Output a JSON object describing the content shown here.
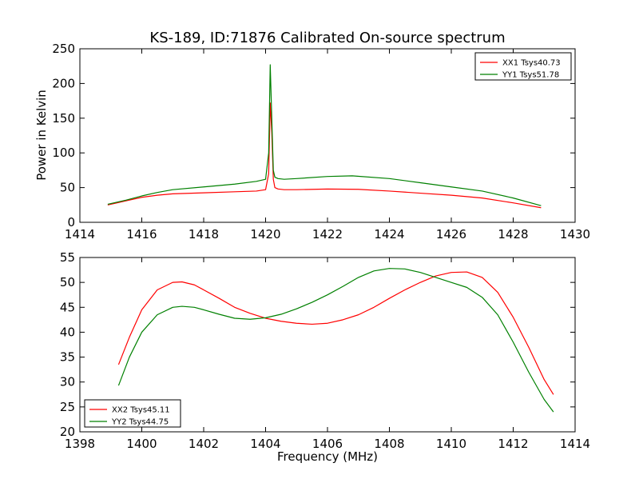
{
  "chart_data": [
    {
      "type": "line",
      "title": "KS-189, ID:71876 Calibrated On-source spectrum",
      "xlabel": "",
      "ylabel": "Power in Kelvin",
      "xlim": [
        1414,
        1430
      ],
      "ylim": [
        0,
        250
      ],
      "xticks": [
        "1414",
        "1416",
        "1418",
        "1420",
        "1422",
        "1424",
        "1426",
        "1428",
        "1430"
      ],
      "yticks": [
        "0",
        "50",
        "100",
        "150",
        "200",
        "250"
      ],
      "grid": false,
      "legend_position": "top-right",
      "series": [
        {
          "name": "XX1 Tsys40.73",
          "color": "#ff0000",
          "x": [
            1414.9,
            1415.5,
            1416.0,
            1416.5,
            1417.0,
            1418.0,
            1419.0,
            1419.7,
            1420.0,
            1420.1,
            1420.15,
            1420.2,
            1420.25,
            1420.3,
            1420.4,
            1420.6,
            1421.0,
            1422.0,
            1423.0,
            1424.0,
            1425.0,
            1426.0,
            1427.0,
            1428.0,
            1428.9
          ],
          "y": [
            25,
            31,
            36,
            39,
            41,
            42.5,
            44,
            45,
            47,
            70,
            172,
            130,
            62,
            50,
            48,
            47,
            47,
            48,
            47.5,
            45,
            42,
            39,
            35,
            28,
            21
          ]
        },
        {
          "name": "YY1 Tsys51.78",
          "color": "#008000",
          "x": [
            1414.9,
            1415.5,
            1416.0,
            1416.5,
            1417.0,
            1418.0,
            1419.0,
            1419.7,
            1420.0,
            1420.1,
            1420.15,
            1420.2,
            1420.25,
            1420.3,
            1420.4,
            1420.6,
            1421.0,
            1422.0,
            1422.8,
            1424.0,
            1425.0,
            1426.0,
            1427.0,
            1428.0,
            1428.9
          ],
          "y": [
            26,
            32,
            38,
            43,
            47,
            51,
            55,
            59,
            62,
            100,
            227,
            150,
            75,
            65,
            63,
            62,
            63,
            66,
            67,
            63,
            57,
            51,
            45,
            35,
            24
          ]
        }
      ]
    },
    {
      "type": "line",
      "title": "",
      "xlabel": "Frequency (MHz)",
      "ylabel": "",
      "xlim": [
        1398,
        1414
      ],
      "ylim": [
        20,
        55
      ],
      "xticks": [
        "1398",
        "1400",
        "1402",
        "1404",
        "1406",
        "1408",
        "1410",
        "1412",
        "1414"
      ],
      "yticks": [
        "20",
        "25",
        "30",
        "35",
        "40",
        "45",
        "50",
        "55"
      ],
      "grid": false,
      "legend_position": "bottom-left",
      "series": [
        {
          "name": "XX2 Tsys45.11",
          "color": "#ff0000",
          "x": [
            1399.25,
            1399.6,
            1400.0,
            1400.5,
            1401.0,
            1401.3,
            1401.7,
            1402.0,
            1402.5,
            1403.0,
            1403.5,
            1404.0,
            1404.5,
            1405.0,
            1405.5,
            1406.0,
            1406.5,
            1407.0,
            1407.5,
            1408.0,
            1408.5,
            1409.0,
            1409.5,
            1410.0,
            1410.5,
            1411.0,
            1411.5,
            1412.0,
            1412.5,
            1413.0,
            1413.3
          ],
          "y": [
            33.5,
            39,
            44.5,
            48.5,
            50,
            50.1,
            49.5,
            48.5,
            46.8,
            45,
            43.8,
            42.8,
            42.2,
            41.8,
            41.6,
            41.8,
            42.5,
            43.5,
            45,
            46.8,
            48.5,
            50,
            51.3,
            52,
            52.1,
            51,
            48,
            43,
            37,
            30.5,
            27.5
          ]
        },
        {
          "name": "YY2 Tsys44.75",
          "color": "#008000",
          "x": [
            1399.25,
            1399.6,
            1400.0,
            1400.5,
            1401.0,
            1401.3,
            1401.7,
            1402.0,
            1402.5,
            1403.0,
            1403.5,
            1404.0,
            1404.5,
            1405.0,
            1405.5,
            1406.0,
            1406.5,
            1407.0,
            1407.5,
            1408.0,
            1408.5,
            1409.0,
            1409.5,
            1410.0,
            1410.5,
            1411.0,
            1411.5,
            1412.0,
            1412.5,
            1413.0,
            1413.3
          ],
          "y": [
            29.3,
            35,
            40,
            43.5,
            45,
            45.2,
            45,
            44.5,
            43.6,
            42.8,
            42.6,
            42.9,
            43.6,
            44.7,
            46,
            47.5,
            49.2,
            51,
            52.3,
            52.8,
            52.7,
            52,
            51,
            50,
            49,
            47,
            43.5,
            38,
            32,
            26.5,
            24
          ]
        }
      ]
    }
  ]
}
